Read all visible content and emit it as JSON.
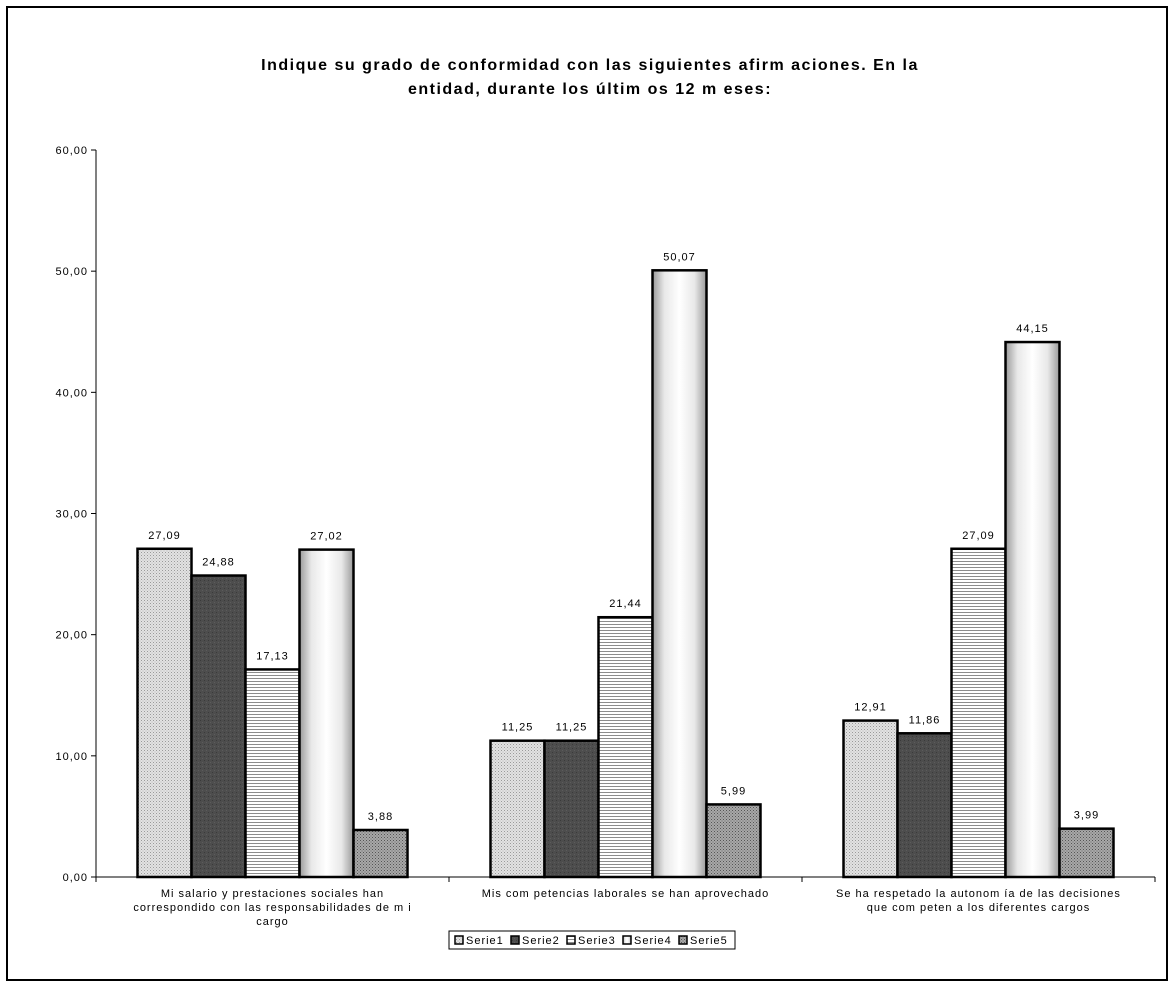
{
  "chart_data": {
    "type": "bar",
    "title_lines": [
      "Indique su grado de conformidad con las siguientes afirm aciones. En la",
      "entidad, durante los últim os 12 m eses:"
    ],
    "categories": [
      [
        "Mi salario y prestaciones sociales han",
        "correspondido con las responsabilidades de m i",
        "cargo"
      ],
      [
        "Mis com petencias laborales se han aprovechado"
      ],
      [
        "Se ha respetado la autonom ía de las decisiones",
        "que com peten a los diferentes cargos"
      ]
    ],
    "series": [
      {
        "name": "Serie1",
        "values": [
          27.09,
          11.25,
          12.91
        ],
        "labels": [
          "27,09",
          "11,25",
          "12,91"
        ],
        "pattern": "dots-light",
        "color": "#d4d4d4"
      },
      {
        "name": "Serie2",
        "values": [
          24.88,
          11.25,
          11.86
        ],
        "labels": [
          "24,88",
          "11,25",
          "11,86"
        ],
        "pattern": "solid-dark",
        "color": "#4a4a4a"
      },
      {
        "name": "Serie3",
        "values": [
          17.13,
          21.44,
          27.09
        ],
        "labels": [
          "17,13",
          "21,44",
          "27,09"
        ],
        "pattern": "hlines",
        "color": "#b0b0b0"
      },
      {
        "name": "Serie4",
        "values": [
          27.02,
          50.07,
          44.15
        ],
        "labels": [
          "27,02",
          "50,07",
          "44,15"
        ],
        "pattern": "cylinder-white",
        "color": "#ffffff"
      },
      {
        "name": "Serie5",
        "values": [
          3.88,
          5.99,
          3.99
        ],
        "labels": [
          "3,88",
          "5,99",
          "3,99"
        ],
        "pattern": "dots-dense",
        "color": "#8a8a8a"
      }
    ],
    "y_ticks": [
      {
        "value": 0,
        "label": "0,00"
      },
      {
        "value": 10,
        "label": "10,00"
      },
      {
        "value": 20,
        "label": "20,00"
      },
      {
        "value": 30,
        "label": "30,00"
      },
      {
        "value": 40,
        "label": "40,00"
      },
      {
        "value": 50,
        "label": "50,00"
      },
      {
        "value": 60,
        "label": "60,00"
      }
    ],
    "ylim": [
      0,
      60
    ],
    "grid": false,
    "legend_position": "bottom"
  }
}
